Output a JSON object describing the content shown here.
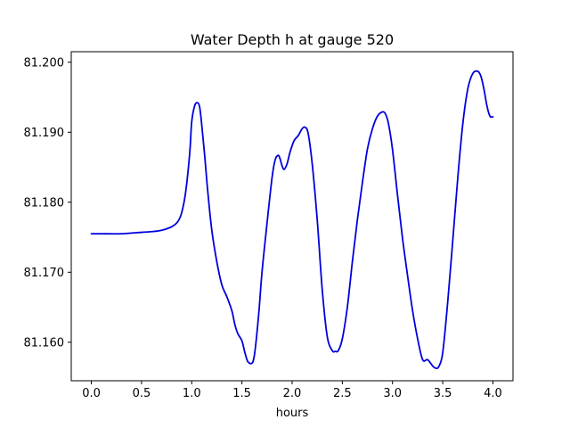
{
  "chart_data": {
    "type": "line",
    "title": "Water Depth h at gauge 520",
    "xlabel": "hours",
    "ylabel": "",
    "xlim": [
      -0.2,
      4.2
    ],
    "ylim": [
      81.1545,
      81.2015
    ],
    "grid": false,
    "legend": "none",
    "x_ticks": [
      0.0,
      0.5,
      1.0,
      1.5,
      2.0,
      2.5,
      3.0,
      3.5,
      4.0
    ],
    "x_tick_labels": [
      "0.0",
      "0.5",
      "1.0",
      "1.5",
      "2.0",
      "2.5",
      "3.0",
      "3.5",
      "4.0"
    ],
    "y_ticks": [
      81.16,
      81.17,
      81.18,
      81.19,
      81.2
    ],
    "y_tick_labels": [
      "81.160",
      "81.170",
      "81.180",
      "81.190",
      "81.200"
    ],
    "series": [
      {
        "color": "#0000dd",
        "x": [
          0.0,
          0.1,
          0.3,
          0.5,
          0.6,
          0.7,
          0.8,
          0.86,
          0.9,
          0.94,
          0.98,
          1.0,
          1.03,
          1.06,
          1.08,
          1.1,
          1.13,
          1.16,
          1.2,
          1.25,
          1.3,
          1.35,
          1.4,
          1.43,
          1.46,
          1.5,
          1.53,
          1.56,
          1.6,
          1.62,
          1.64,
          1.67,
          1.7,
          1.75,
          1.8,
          1.83,
          1.86,
          1.88,
          1.9,
          1.92,
          1.95,
          1.98,
          2.02,
          2.06,
          2.1,
          2.13,
          2.16,
          2.2,
          2.25,
          2.3,
          2.35,
          2.4,
          2.43,
          2.46,
          2.5,
          2.55,
          2.6,
          2.65,
          2.7,
          2.75,
          2.8,
          2.85,
          2.9,
          2.93,
          2.96,
          3.0,
          3.05,
          3.1,
          3.15,
          3.2,
          3.25,
          3.3,
          3.35,
          3.4,
          3.43,
          3.46,
          3.5,
          3.55,
          3.6,
          3.65,
          3.7,
          3.75,
          3.8,
          3.85,
          3.88,
          3.91,
          3.94,
          3.97,
          4.0
        ],
        "values": [
          81.1755,
          81.1755,
          81.1755,
          81.1757,
          81.1758,
          81.176,
          81.1765,
          81.1772,
          81.1785,
          81.1815,
          81.187,
          81.1915,
          81.1938,
          81.1942,
          81.1935,
          81.191,
          81.1865,
          81.1815,
          81.176,
          81.1715,
          81.1682,
          81.1665,
          81.1645,
          81.1625,
          81.1612,
          81.1602,
          81.1585,
          81.1572,
          81.157,
          81.1578,
          81.16,
          81.1645,
          81.17,
          81.177,
          81.1835,
          81.186,
          81.1867,
          81.1862,
          81.1852,
          81.1847,
          81.1855,
          81.1872,
          81.1888,
          81.1895,
          81.1905,
          81.1907,
          81.1898,
          81.1855,
          81.1775,
          81.1675,
          81.1608,
          81.1588,
          81.1587,
          81.1588,
          81.1605,
          81.165,
          81.1715,
          81.1775,
          81.1828,
          81.1876,
          81.1905,
          81.1923,
          81.1929,
          81.1926,
          81.1912,
          81.1875,
          81.181,
          81.1748,
          81.1695,
          81.1645,
          81.1605,
          81.1575,
          81.1575,
          81.1566,
          81.1563,
          81.1565,
          81.1585,
          81.1658,
          81.1745,
          81.1835,
          81.1912,
          81.1962,
          81.1984,
          81.1987,
          81.198,
          81.1962,
          81.1938,
          81.1923,
          81.1922
        ]
      }
    ]
  }
}
